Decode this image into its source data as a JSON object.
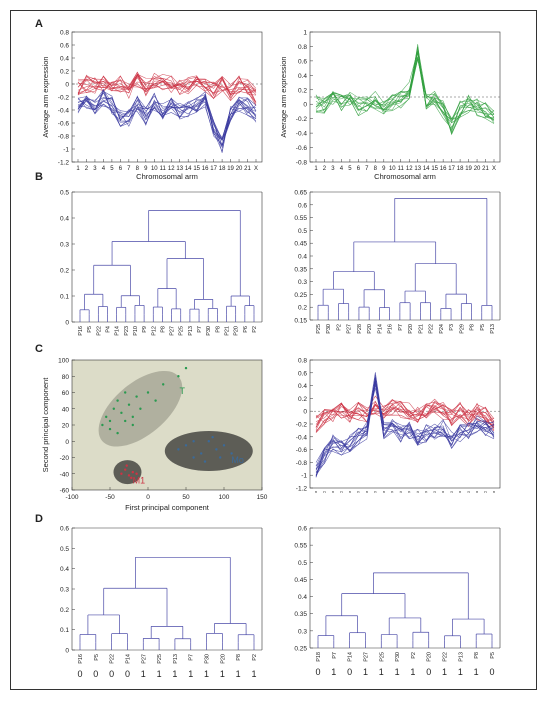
{
  "panel_labels": [
    "A",
    "B",
    "C",
    "D"
  ],
  "chart_data": [
    {
      "id": "A-left",
      "type": "line",
      "xlabel": "Chromosomal arm",
      "ylabel": "Average arm expression",
      "ylim": [
        -1.2,
        0.8
      ],
      "yticks": [
        "0.8",
        "0.6",
        "0.4",
        "0.2",
        "0",
        "-0.2",
        "-0.4",
        "-0.6",
        "-0.8",
        "-1",
        "-1.2"
      ],
      "xticks": [
        "1",
        "2",
        "3",
        "4",
        "5",
        "6",
        "7",
        "8",
        "9",
        "10",
        "11",
        "12",
        "13",
        "14",
        "15",
        "16",
        "17",
        "18",
        "19",
        "20",
        "21",
        "X"
      ],
      "grid": false,
      "colors": {
        "group1": "#cc3344",
        "group2": "#3a3aa0"
      },
      "series": [
        {
          "color": "#cc3344",
          "values": [
            -0.05,
            0.0,
            -0.02,
            0.02,
            -0.05,
            0.0,
            -0.1,
            0.05,
            -0.05,
            0.05,
            0.02,
            0.0,
            -0.05,
            -0.02,
            0.05,
            0.0,
            -0.1,
            0.0,
            -0.12,
            0.0,
            -0.05,
            -0.2
          ]
        },
        {
          "color": "#3a3aa0",
          "values": [
            -0.35,
            -0.28,
            -0.38,
            -0.22,
            -0.32,
            -0.55,
            -0.52,
            -0.3,
            -0.5,
            -0.28,
            -0.4,
            -0.35,
            -0.42,
            -0.4,
            -0.3,
            -0.25,
            -0.7,
            -0.95,
            -0.45,
            -0.3,
            -0.35,
            -0.45
          ]
        }
      ]
    },
    {
      "id": "A-right",
      "type": "line",
      "xlabel": "Chromosomal arm",
      "ylabel": "Average arm expression",
      "ylim": [
        -1,
        1
      ],
      "yticks": [
        "1",
        "0.8",
        "0.6",
        "0.4",
        "0.2",
        "0",
        "-0.2",
        "-0.4",
        "-0.6",
        "-0.8"
      ],
      "xticks": [
        "1",
        "2",
        "3",
        "4",
        "5",
        "6",
        "7",
        "8",
        "9",
        "10",
        "11",
        "12",
        "13",
        "14",
        "15",
        "16",
        "17",
        "18",
        "19",
        "20",
        "21",
        "X"
      ],
      "grid": false,
      "colors": {
        "group1": "#33a040"
      },
      "series": [
        {
          "color": "#33a040",
          "values": [
            -0.1,
            -0.15,
            0.0,
            -0.1,
            -0.05,
            -0.15,
            -0.1,
            -0.05,
            -0.15,
            -0.1,
            -0.05,
            0.1,
            0.7,
            -0.1,
            -0.05,
            -0.2,
            -0.45,
            -0.2,
            -0.1,
            -0.15,
            -0.2,
            -0.3
          ]
        }
      ]
    },
    {
      "id": "B-left",
      "type": "dendrogram",
      "ylim": [
        0,
        0.55
      ],
      "yticks": [
        "0.5",
        "0.4",
        "0.3",
        "0.2",
        "0.1",
        "0"
      ],
      "leaves": [
        "P16",
        "P5",
        "P22",
        "P4",
        "P14",
        "P23",
        "P10",
        "P9",
        "P12",
        "P8",
        "P27",
        "P25",
        "P13",
        "P7",
        "P30",
        "P8",
        "P21",
        "P20",
        "P6",
        "P2"
      ],
      "color": "#4a4aa8"
    },
    {
      "id": "B-right",
      "type": "dendrogram",
      "ylim": [
        0.15,
        0.65
      ],
      "yticks": [
        "0.65",
        "0.6",
        "0.55",
        "0.5",
        "0.45",
        "0.4",
        "0.35",
        "0.3",
        "0.25",
        "0.2",
        "0.15"
      ],
      "leaves": [
        "P25",
        "P30",
        "P2",
        "P27",
        "P28",
        "P20",
        "P14",
        "P16",
        "P7",
        "P20",
        "P21",
        "P22",
        "P24",
        "P3",
        "P29",
        "P8",
        "P5",
        "P13"
      ],
      "color": "#4a4aa8"
    },
    {
      "id": "C-left",
      "type": "scatter",
      "xlabel": "First principal component",
      "ylabel": "Second principal component",
      "xlim": [
        -100,
        150
      ],
      "ylim": [
        -60,
        100
      ],
      "xticks": [
        "-100",
        "-50",
        "0",
        "50",
        "100",
        "150"
      ],
      "yticks": [
        "100",
        "80",
        "60",
        "40",
        "20",
        "0",
        "-20",
        "-40",
        "-60"
      ],
      "background": "#dcdcc8",
      "clusters": [
        {
          "label": "T",
          "color": "#2a9a50",
          "points": [
            [
              -60,
              20
            ],
            [
              -55,
              30
            ],
            [
              -50,
              25
            ],
            [
              -45,
              40
            ],
            [
              -40,
              50
            ],
            [
              -35,
              35
            ],
            [
              -30,
              60
            ],
            [
              -25,
              45
            ],
            [
              -20,
              30
            ],
            [
              -15,
              55
            ],
            [
              -10,
              40
            ],
            [
              0,
              60
            ],
            [
              10,
              50
            ],
            [
              20,
              70
            ],
            [
              -40,
              10
            ],
            [
              -50,
              15
            ],
            [
              -30,
              25
            ],
            [
              -20,
              20
            ],
            [
              40,
              80
            ],
            [
              50,
              90
            ]
          ]
        },
        {
          "label": "Mo",
          "color": "#3a6a9a",
          "points": [
            [
              40,
              -10
            ],
            [
              50,
              -5
            ],
            [
              60,
              -20
            ],
            [
              70,
              -15
            ],
            [
              80,
              0
            ],
            [
              90,
              -10
            ],
            [
              100,
              -5
            ],
            [
              110,
              -15
            ],
            [
              60,
              0
            ],
            [
              75,
              -25
            ],
            [
              95,
              -20
            ],
            [
              85,
              5
            ]
          ]
        },
        {
          "label": "M1",
          "color": "#cc3344",
          "points": [
            [
              -35,
              -40
            ],
            [
              -30,
              -35
            ],
            [
              -25,
              -42
            ],
            [
              -20,
              -38
            ],
            [
              -28,
              -30
            ],
            [
              -15,
              -40
            ],
            [
              -22,
              -45
            ]
          ]
        }
      ]
    },
    {
      "id": "C-right",
      "type": "line",
      "ylim": [
        -1.2,
        0.8
      ],
      "yticks": [
        "0.8",
        "0.6",
        "0.4",
        "0.2",
        "0",
        "-0.2",
        "-0.4",
        "-0.6",
        "-0.8",
        "-1",
        "-1.2"
      ],
      "colors": {
        "group1": "#cc3344",
        "group2": "#3a3aa0"
      },
      "series": [
        {
          "color": "#cc3344",
          "values": [
            -0.2,
            -0.1,
            -0.05,
            0.0,
            -0.1,
            0.0,
            -0.05,
            0.1,
            0.0,
            0.05,
            0.02,
            0.0,
            -0.05,
            -0.02,
            0.05,
            0.0,
            -0.1,
            0.0,
            -0.1,
            0.0,
            -0.05,
            -0.2
          ]
        },
        {
          "color": "#3a3aa0",
          "values": [
            -0.9,
            -0.7,
            -0.5,
            -0.6,
            -0.5,
            -0.4,
            -0.3,
            0.5,
            -0.3,
            -0.2,
            -0.35,
            -0.3,
            -0.4,
            -0.35,
            -0.3,
            -0.25,
            -0.45,
            -0.35,
            -0.3,
            -0.2,
            -0.25,
            -0.3
          ]
        }
      ]
    },
    {
      "id": "D-left",
      "type": "dendrogram",
      "ylim": [
        0,
        0.65
      ],
      "yticks": [
        "0.6",
        "0.5",
        "0.4",
        "0.3",
        "0.2",
        "0.1",
        "0"
      ],
      "leaves": [
        "P16",
        "P5",
        "P22",
        "P14",
        "P27",
        "P25",
        "P13",
        "P7",
        "P30",
        "P20",
        "P8",
        "P2"
      ],
      "classes": [
        "0",
        "0",
        "0",
        "0",
        "1",
        "1",
        "1",
        "1",
        "1",
        "1",
        "1",
        "1"
      ],
      "color": "#4a4aa8"
    },
    {
      "id": "D-right",
      "type": "dendrogram",
      "ylim": [
        0.2,
        0.62
      ],
      "yticks": [
        "0.6",
        "0.55",
        "0.5",
        "0.45",
        "0.4",
        "0.35",
        "0.3",
        "0.25"
      ],
      "leaves": [
        "P18",
        "P7",
        "P14",
        "P27",
        "P25",
        "P30",
        "P2",
        "P20",
        "P22",
        "P13",
        "P8",
        "P5"
      ],
      "classes": [
        "0",
        "1",
        "0",
        "1",
        "1",
        "1",
        "1",
        "0",
        "1",
        "1",
        "1",
        "0"
      ],
      "color": "#4a4aa8"
    }
  ]
}
